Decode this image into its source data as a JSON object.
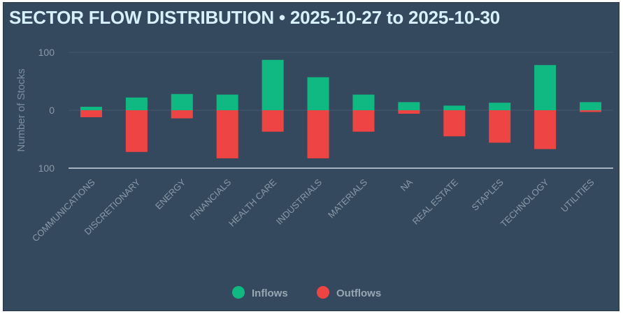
{
  "chart_data": {
    "type": "bar",
    "title": "SECTOR FLOW DISTRIBUTION • 2025-10-27 to 2025-10-30",
    "ylabel": "Number of Stocks",
    "xlabel": "",
    "ylim": [
      -100,
      100
    ],
    "yticks": [
      {
        "value": 100,
        "label": "100"
      },
      {
        "value": 0,
        "label": "0"
      },
      {
        "value": -100,
        "label": "100"
      }
    ],
    "grid": true,
    "legend_position": "bottom",
    "categories": [
      "COMMUNICATIONS",
      "DISCRETIONARY",
      "ENERGY",
      "FINANCIALS",
      "HEALTH CARE",
      "INDUSTRIALS",
      "MATERIALS",
      "NA",
      "REAL ESTATE",
      "STAPLES",
      "TECHNOLOGY",
      "UTILITIES"
    ],
    "series": [
      {
        "name": "Inflows",
        "color": "#10b981",
        "values": [
          6,
          22,
          28,
          27,
          87,
          57,
          27,
          14,
          8,
          13,
          78,
          14
        ]
      },
      {
        "name": "Outflows",
        "color": "#ef4444",
        "values": [
          -12,
          -72,
          -14,
          -83,
          -37,
          -83,
          -37,
          -6,
          -45,
          -56,
          -67,
          -3
        ]
      }
    ]
  },
  "colors": {
    "background": "#34495e",
    "title": "#d6f1fb"
  }
}
